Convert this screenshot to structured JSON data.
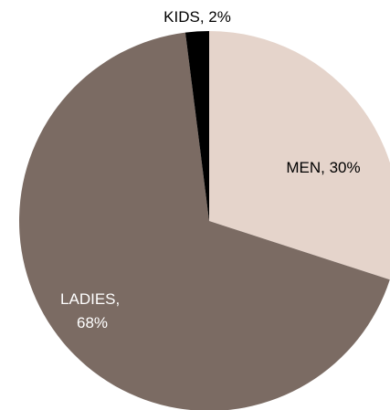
{
  "chart_data": {
    "type": "pie",
    "title": "",
    "start": "12 o'clock",
    "direction": "clockwise",
    "slices": [
      {
        "name": "MEN",
        "value": 30,
        "label_lines": [
          "MEN, 30%"
        ],
        "color": "#e5d4cb",
        "label_color": "#000000"
      },
      {
        "name": "LADIES",
        "value": 68,
        "label_lines": [
          "LADIES,",
          "68%"
        ],
        "color": "#7b6b63",
        "label_color": "#ffffff"
      },
      {
        "name": "KIDS",
        "value": 2,
        "label_lines": [
          "KIDS, 2%"
        ],
        "color": "#000000",
        "label_color": "#000000"
      }
    ],
    "legend": false
  }
}
